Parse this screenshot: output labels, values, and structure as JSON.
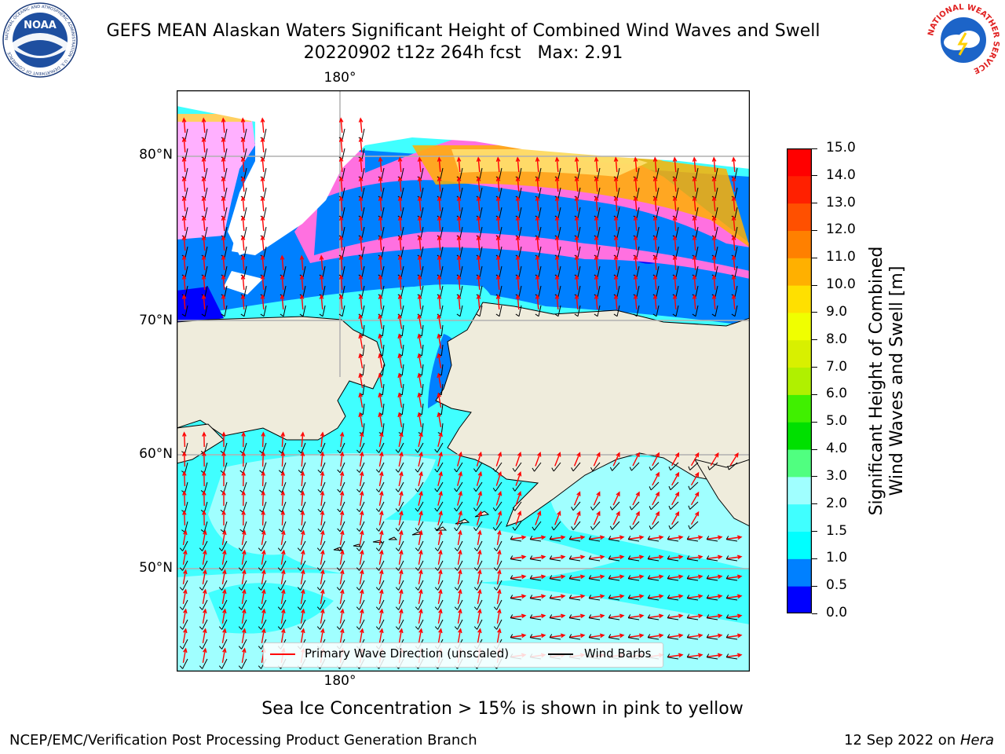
{
  "header": {
    "title_line1": "GEFS MEAN Alaskan Waters Significant Height of Combined Wind Waves and Swell",
    "title_line2": "20220902 t12z 264h fcst   Max: 2.91"
  },
  "logos": {
    "left": {
      "name": "noaa-logo",
      "text": "NOAA",
      "ring_text": "NATIONAL OCEANIC AND ATMOSPHERIC ADMINISTRATION · U.S. DEPARTMENT OF COMMERCE"
    },
    "right": {
      "name": "nws-logo",
      "ring_text": "NATIONAL WEATHER SERVICE"
    }
  },
  "map": {
    "lon_labels": {
      "top": "180°",
      "bottom": "180°"
    },
    "lat_labels": [
      "80°N",
      "70°N",
      "60°N",
      "50°N"
    ],
    "colors": {
      "land": "#efecdc",
      "no_data": "#ffffff",
      "frame": "#000000",
      "grid": "#b0b0b0",
      "wave_arrow": "#ff0000",
      "wind_barb": "#000000"
    },
    "legend": {
      "wave_label": "Primary Wave Direction (unscaled)",
      "wind_label": "Wind Barbs"
    },
    "caption": "Sea Ice Concentration > 15% is shown in pink to yellow"
  },
  "colorbar": {
    "label_line1": "Significant Height of Combined",
    "label_line2": "Wind Waves and Swell [m]",
    "ticks": [
      "15.0",
      "14.0",
      "13.0",
      "12.0",
      "11.0",
      "10.0",
      "9.0",
      "8.0",
      "7.0",
      "6.0",
      "5.0",
      "4.0",
      "3.0",
      "2.0",
      "1.5",
      "1.0",
      "0.5",
      "0.0"
    ],
    "colors_bottom_to_top": [
      "#0000ff",
      "#0080ff",
      "#00ffff",
      "#40ffff",
      "#a0ffff",
      "#50ff80",
      "#00e000",
      "#40f000",
      "#b0f000",
      "#d8f000",
      "#f0ff00",
      "#ffe000",
      "#ffb000",
      "#ff8000",
      "#ff5000",
      "#ff2000",
      "#ff0000"
    ]
  },
  "footer": {
    "left": "NCEP/EMC/Verification Post Processing Product Generation Branch",
    "right_prefix": "12 Sep 2022 on ",
    "right_machine": "Hera"
  }
}
